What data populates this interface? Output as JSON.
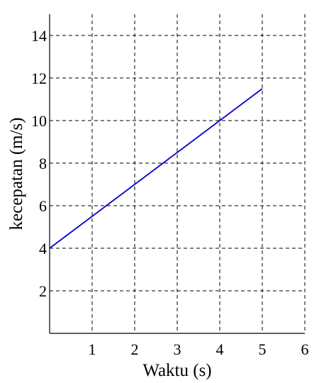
{
  "chart_data": {
    "type": "line",
    "xlabel": "Waktu (s)",
    "ylabel": "kecepatan (m/s)",
    "xlim": [
      0,
      6
    ],
    "ylim": [
      0,
      15
    ],
    "xticks": [
      1,
      2,
      3,
      4,
      5,
      6
    ],
    "yticks": [
      2,
      4,
      6,
      8,
      10,
      12,
      14
    ],
    "grid": true,
    "series_color": "#0000cc",
    "series": [
      {
        "x": [
          0,
          5
        ],
        "y": [
          4,
          11.5
        ]
      }
    ]
  }
}
